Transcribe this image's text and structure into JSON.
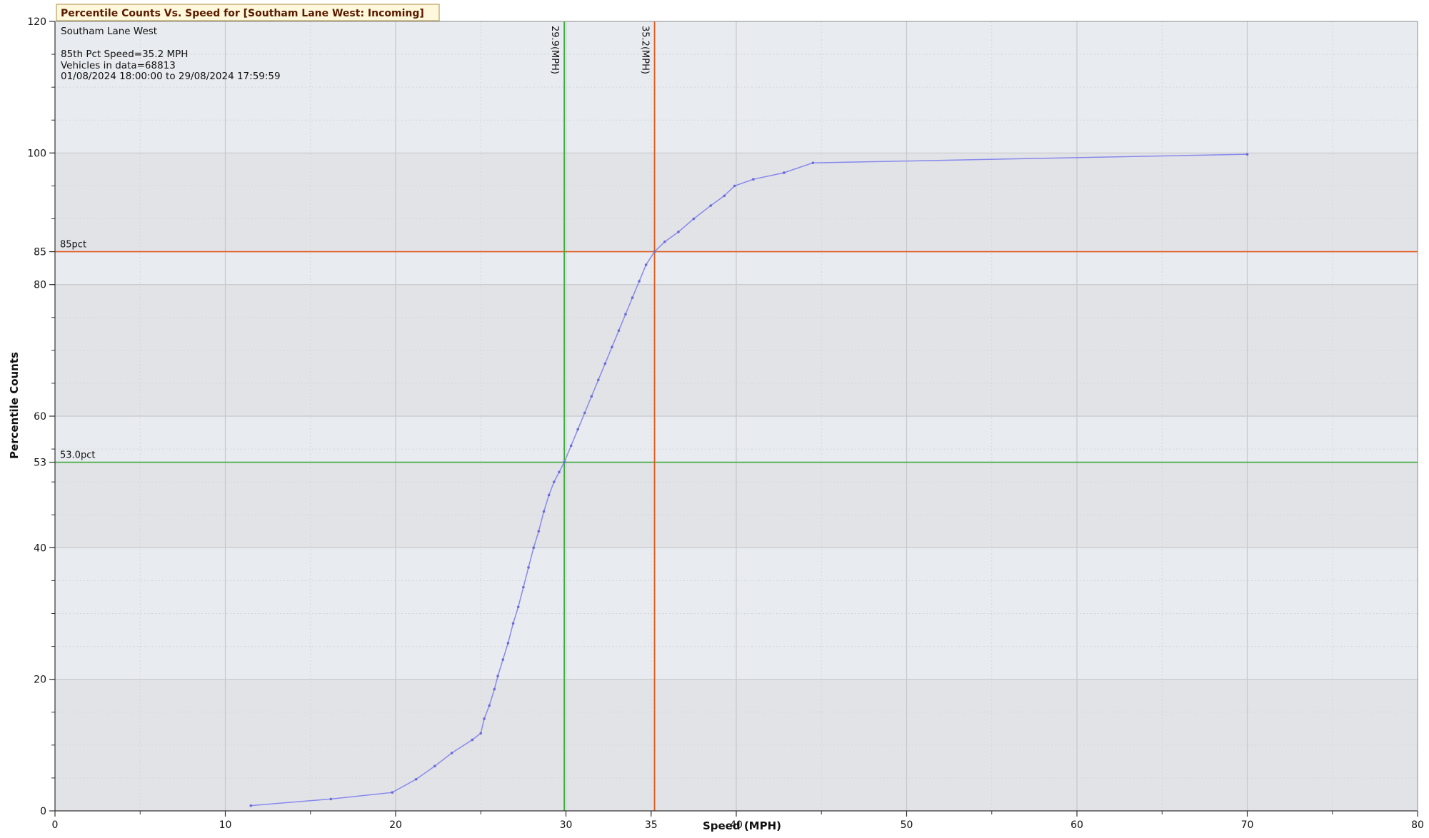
{
  "chart_data": {
    "type": "line",
    "title": "Percentile Counts Vs. Speed for [Southam Lane West: Incoming]",
    "info": {
      "site": "Southam Lane West",
      "pct85_speed": "85th Pct Speed=35.2 MPH",
      "vehicles": "Vehicles in data=68813",
      "period": "01/08/2024 18:00:00 to 29/08/2024 17:59:59"
    },
    "xlabel": "Speed (MPH)",
    "ylabel": "Percentile Counts",
    "xlim": [
      0,
      80
    ],
    "ylim": [
      0,
      120
    ],
    "x_ticks": [
      0,
      10,
      20,
      30,
      35,
      40,
      50,
      60,
      70,
      80
    ],
    "y_ticks": [
      0,
      20,
      40,
      53,
      60,
      80,
      85,
      100,
      120
    ],
    "grid": true,
    "colors": {
      "series": "#8888ee",
      "pct85_line": "#e25a1c",
      "pct53_line": "#3cab3c",
      "title_bg": "#fff8dc",
      "title_border": "#b8a060",
      "title_text": "#5a1a00",
      "band_light": "#e8ebef",
      "band_dark": "#e2e3e6"
    },
    "reference_lines": {
      "horizontal": [
        {
          "y": 85,
          "label": "85pct",
          "color": "#e25a1c"
        },
        {
          "y": 53,
          "label": "53.0pct",
          "color": "#3cab3c"
        }
      ],
      "vertical": [
        {
          "x": 29.9,
          "label": "29.9(MPH)",
          "color": "#3cab3c"
        },
        {
          "x": 35.2,
          "label": "35.2(MPH)",
          "color": "#e25a1c"
        }
      ]
    },
    "series": [
      {
        "x": [
          11.5,
          16.2,
          19.8,
          21.2,
          22.3,
          23.3,
          24.5,
          25.0,
          25.2,
          25.5,
          25.8,
          26.0,
          26.3,
          26.6,
          26.9,
          27.2,
          27.5,
          27.8,
          28.1,
          28.4,
          28.7,
          29.0,
          29.3,
          29.6,
          29.9,
          30.3,
          30.7,
          31.1,
          31.5,
          31.9,
          32.3,
          32.7,
          33.1,
          33.5,
          33.9,
          34.3,
          34.7,
          35.2,
          35.8,
          36.6,
          37.5,
          38.5,
          39.3,
          39.9,
          41.0,
          42.8,
          44.5,
          70.0
        ],
        "y": [
          0.8,
          1.8,
          2.8,
          4.8,
          6.8,
          8.8,
          10.8,
          11.8,
          14.0,
          16.0,
          18.5,
          20.5,
          23.0,
          25.5,
          28.5,
          31.0,
          34.0,
          37.0,
          40.0,
          42.5,
          45.5,
          48.0,
          50.0,
          51.5,
          53.0,
          55.5,
          58.0,
          60.5,
          63.0,
          65.5,
          68.0,
          70.5,
          73.0,
          75.5,
          78.0,
          80.5,
          83.0,
          85.0,
          86.5,
          88.0,
          90.0,
          92.0,
          93.5,
          95.0,
          96.0,
          97.0,
          98.5,
          99.8
        ]
      }
    ]
  }
}
